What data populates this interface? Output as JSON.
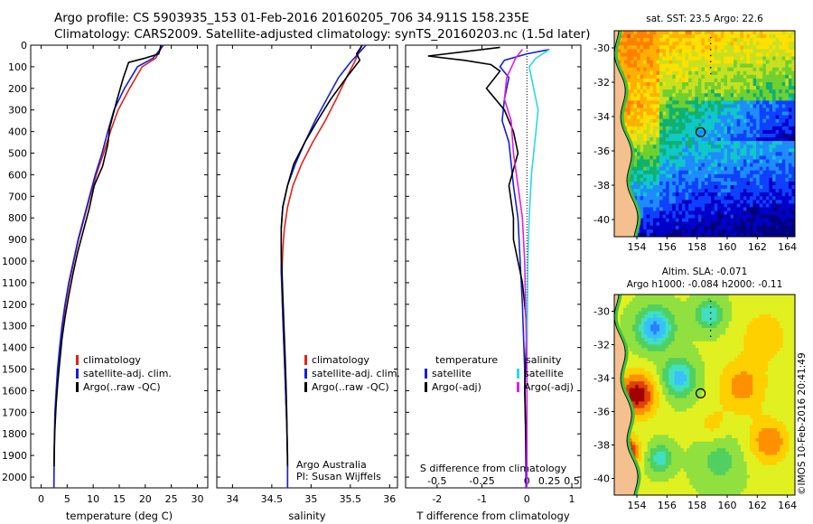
{
  "header": {
    "line1": "Argo profile: CS 5903935_153 01-Feb-2016 20160205_706 34.911S 158.235E",
    "line2": "Climatology: CARS2009. Satellite-adjusted climatology: synTS_20160203.nc (1.5d later)"
  },
  "colors": {
    "climatology": "#e0241b",
    "satellite": "#1520d8",
    "argo": "#000000",
    "sat_salinity": "#2ad8e8",
    "argo_salinity": "#e020e0"
  },
  "chart_data": [
    {
      "type": "line",
      "name": "temperature-profile",
      "xlabel": "temperature (deg C)",
      "ylabel": "",
      "xlim": [
        -2,
        32
      ],
      "ylim": [
        2050,
        0
      ],
      "xticks": [
        0,
        5,
        10,
        15,
        20,
        25,
        30
      ],
      "yticks": [
        0,
        100,
        200,
        300,
        400,
        500,
        600,
        700,
        800,
        900,
        1000,
        1100,
        1200,
        1300,
        1400,
        1500,
        1600,
        1700,
        1800,
        1900,
        2000
      ],
      "legend": [
        "climatology",
        "satellite-adj. clim.",
        "Argo(..raw -QC)"
      ],
      "series": [
        {
          "name": "climatology",
          "x": [
            23.4,
            22.0,
            19.4,
            17.0,
            14.8,
            13.3,
            12.0,
            10.6,
            9.4,
            8.3,
            7.2,
            6.3,
            5.4,
            4.7,
            4.1,
            3.6,
            3.2,
            2.95,
            2.7,
            2.5,
            2.45
          ],
          "y": [
            0,
            60,
            100,
            200,
            300,
            400,
            500,
            600,
            700,
            800,
            900,
            1000,
            1100,
            1200,
            1300,
            1400,
            1500,
            1600,
            1700,
            1900,
            2050
          ]
        },
        {
          "name": "satellite-adj. clim.",
          "x": [
            23.5,
            21.5,
            18.5,
            16.0,
            14.0,
            12.8,
            11.7,
            10.4,
            9.3,
            8.2,
            7.1,
            6.2,
            5.3,
            4.6,
            4.0,
            3.55,
            3.15,
            2.9,
            2.65,
            2.5,
            2.45
          ],
          "y": [
            0,
            60,
            100,
            200,
            300,
            400,
            500,
            600,
            700,
            800,
            900,
            1000,
            1100,
            1200,
            1300,
            1400,
            1500,
            1600,
            1700,
            1900,
            2050
          ]
        },
        {
          "name": "Argo(..raw -QC)",
          "x": [
            23.0,
            22.6,
            20.0,
            16.8,
            15.8,
            14.6,
            13.2,
            12.8,
            11.8,
            10.2,
            9.2,
            8.1,
            7.0,
            6.1,
            5.3,
            4.6,
            4.0,
            3.6,
            3.2,
            2.9,
            2.6,
            2.5
          ],
          "y": [
            0,
            40,
            60,
            80,
            150,
            250,
            380,
            460,
            560,
            650,
            760,
            860,
            960,
            1060,
            1160,
            1260,
            1360,
            1460,
            1560,
            1660,
            1800,
            1950
          ]
        }
      ]
    },
    {
      "type": "line",
      "name": "salinity-profile",
      "xlabel": "salinity",
      "ylabel": "",
      "xlim": [
        33.8,
        36.1
      ],
      "ylim": [
        2050,
        0
      ],
      "xticks": [
        34,
        34.5,
        35,
        35.5,
        36
      ],
      "xtick_labels": [
        "34",
        "34.5",
        "35",
        "35.5",
        "36"
      ],
      "legend": [
        "climatology",
        "satellite-adj. clim.",
        "Argo(..raw -QC)"
      ],
      "annotation": [
        "Argo Australia",
        "PI: Susan Wijffels"
      ],
      "series": [
        {
          "name": "climatology",
          "x": [
            35.65,
            35.55,
            35.45,
            35.32,
            35.18,
            35.02,
            34.88,
            34.77,
            34.7,
            34.66,
            34.64,
            34.63,
            34.63,
            34.64,
            34.65,
            34.66,
            34.67,
            34.68,
            34.69,
            34.7,
            34.7
          ],
          "y": [
            0,
            80,
            150,
            250,
            350,
            450,
            550,
            650,
            750,
            850,
            950,
            1050,
            1150,
            1250,
            1350,
            1450,
            1550,
            1650,
            1750,
            1900,
            2050
          ]
        },
        {
          "name": "satellite-adj. clim.",
          "x": [
            35.7,
            35.5,
            35.35,
            35.2,
            35.05,
            34.92,
            34.8,
            34.7,
            34.64,
            34.62,
            34.62,
            34.62,
            34.63,
            34.64,
            34.65,
            34.66,
            34.67,
            34.68,
            34.69,
            34.7,
            34.7
          ],
          "y": [
            0,
            80,
            150,
            250,
            350,
            450,
            550,
            650,
            750,
            850,
            950,
            1050,
            1150,
            1250,
            1350,
            1450,
            1550,
            1650,
            1750,
            1900,
            2050
          ]
        },
        {
          "name": "Argo(..raw -QC)",
          "x": [
            35.65,
            35.58,
            35.62,
            35.45,
            35.25,
            35.08,
            34.92,
            34.78,
            34.7,
            34.64,
            34.62,
            34.62,
            34.63,
            34.64,
            34.65,
            34.66,
            34.67,
            34.68,
            34.69,
            34.7
          ],
          "y": [
            0,
            40,
            70,
            150,
            250,
            350,
            450,
            550,
            650,
            750,
            850,
            950,
            1050,
            1150,
            1250,
            1350,
            1450,
            1550,
            1700,
            1950
          ]
        }
      ]
    },
    {
      "type": "line",
      "name": "difference-profile",
      "xlabel": "T difference from climatology",
      "xlabel_top": "S difference from climatology",
      "xlim": [
        -2.7,
        1.2
      ],
      "xticks": [
        -2,
        -1,
        0,
        0.25,
        0.5
      ],
      "xtick_labels_T": [
        "-2",
        "-1",
        "0",
        "1"
      ],
      "xtick_labels_S": [
        "-0.5",
        "-0.25",
        "0",
        "0.25",
        "0.5"
      ],
      "legend_titles": [
        "temperature",
        "salinity"
      ],
      "legend": [
        "satellite",
        "Argo(-adj)",
        "satellite",
        "Argo(-adj)"
      ],
      "series": [
        {
          "name": "temperature satellite",
          "x": [
            0.5,
            0.0,
            -0.5,
            -0.6,
            -0.4,
            -0.5,
            -0.55,
            -0.4,
            -0.35,
            -0.3,
            -0.2,
            -0.15,
            -0.1,
            -0.05,
            -0.03,
            -0.02
          ],
          "y": [
            20,
            40,
            70,
            100,
            150,
            250,
            350,
            450,
            550,
            650,
            800,
            1000,
            1200,
            1500,
            1800,
            2050
          ]
        },
        {
          "name": "temperature Argo(-adj)",
          "x": [
            -0.6,
            -2.2,
            -1.4,
            -0.8,
            -0.6,
            -0.9,
            -0.5,
            -0.3,
            -0.2,
            -0.4,
            -0.3,
            -0.3,
            -0.1,
            0.0,
            -0.05,
            0.0
          ],
          "y": [
            10,
            50,
            70,
            90,
            120,
            200,
            300,
            400,
            500,
            650,
            800,
            900,
            1100,
            1300,
            1600,
            2000
          ]
        },
        {
          "name": "salinity satellite",
          "x": [
            0.5,
            0.2,
            0.05,
            0.15,
            0.25,
            0.2,
            0.1,
            0.05,
            0.02,
            0.0,
            0.0
          ],
          "y": [
            20,
            60,
            100,
            200,
            300,
            400,
            600,
            800,
            1000,
            1500,
            2050
          ]
        },
        {
          "name": "salinity Argo(-adj)",
          "x": [
            -0.1,
            -0.25,
            -0.45,
            -0.5,
            -0.35,
            -0.3,
            -0.2,
            -0.1,
            -0.05,
            0.0,
            0.0
          ],
          "y": [
            20,
            60,
            150,
            250,
            350,
            500,
            650,
            800,
            1000,
            1500,
            2050
          ]
        }
      ]
    },
    {
      "type": "heatmap",
      "name": "sst-map",
      "title": "sat. SST: 23.5  Argo: 22.6",
      "xlim": [
        152.5,
        164.5
      ],
      "ylim": [
        -41,
        -29
      ],
      "xticks": [
        154,
        156,
        158,
        160,
        162,
        164
      ],
      "yticks": [
        -30,
        -32,
        -34,
        -36,
        -38,
        -40
      ],
      "marker": {
        "lon": 158.235,
        "lat": -34.911
      }
    },
    {
      "type": "heatmap",
      "name": "sla-map",
      "title": "Altim. SLA: -0.071",
      "subtitle": "Argo h1000: -0.084 h2000: -0.11",
      "xlim": [
        152.5,
        164.5
      ],
      "ylim": [
        -41,
        -29
      ],
      "xticks": [
        154,
        156,
        158,
        160,
        162,
        164
      ],
      "yticks": [
        -30,
        -32,
        -34,
        -36,
        -38,
        -40
      ],
      "marker": {
        "lon": 158.235,
        "lat": -34.911
      }
    }
  ],
  "footer": {
    "credit": "©IMOS 10-Feb-2016 20:41:49"
  }
}
